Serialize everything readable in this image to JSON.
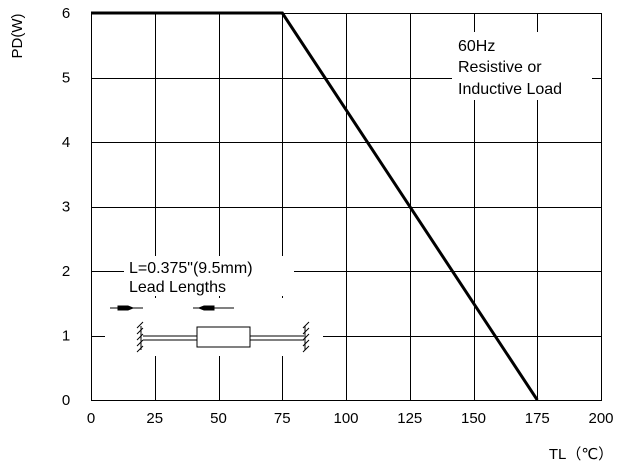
{
  "chart_data": {
    "type": "line",
    "title": "",
    "xlabel": "TL（℃）",
    "ylabel": "PD(W)",
    "xlim": [
      0,
      200
    ],
    "ylim": [
      0,
      6
    ],
    "xticks": [
      "0",
      "25",
      "50",
      "75",
      "100",
      "125",
      "150",
      "175",
      "200"
    ],
    "yticks": [
      "0",
      "1",
      "2",
      "3",
      "4",
      "5",
      "6"
    ],
    "grid": true,
    "series": [
      {
        "x": [
          0,
          75,
          175
        ],
        "y": [
          6,
          6,
          0
        ]
      }
    ],
    "annotations": {
      "conditions": [
        "60Hz",
        "Resistive or",
        "Inductive Load"
      ],
      "lead": [
        "L=0.375\"(9.5mm)",
        "Lead Lengths"
      ]
    }
  },
  "colors": {
    "line": "#000000",
    "grid": "#000000",
    "background": "#ffffff"
  }
}
